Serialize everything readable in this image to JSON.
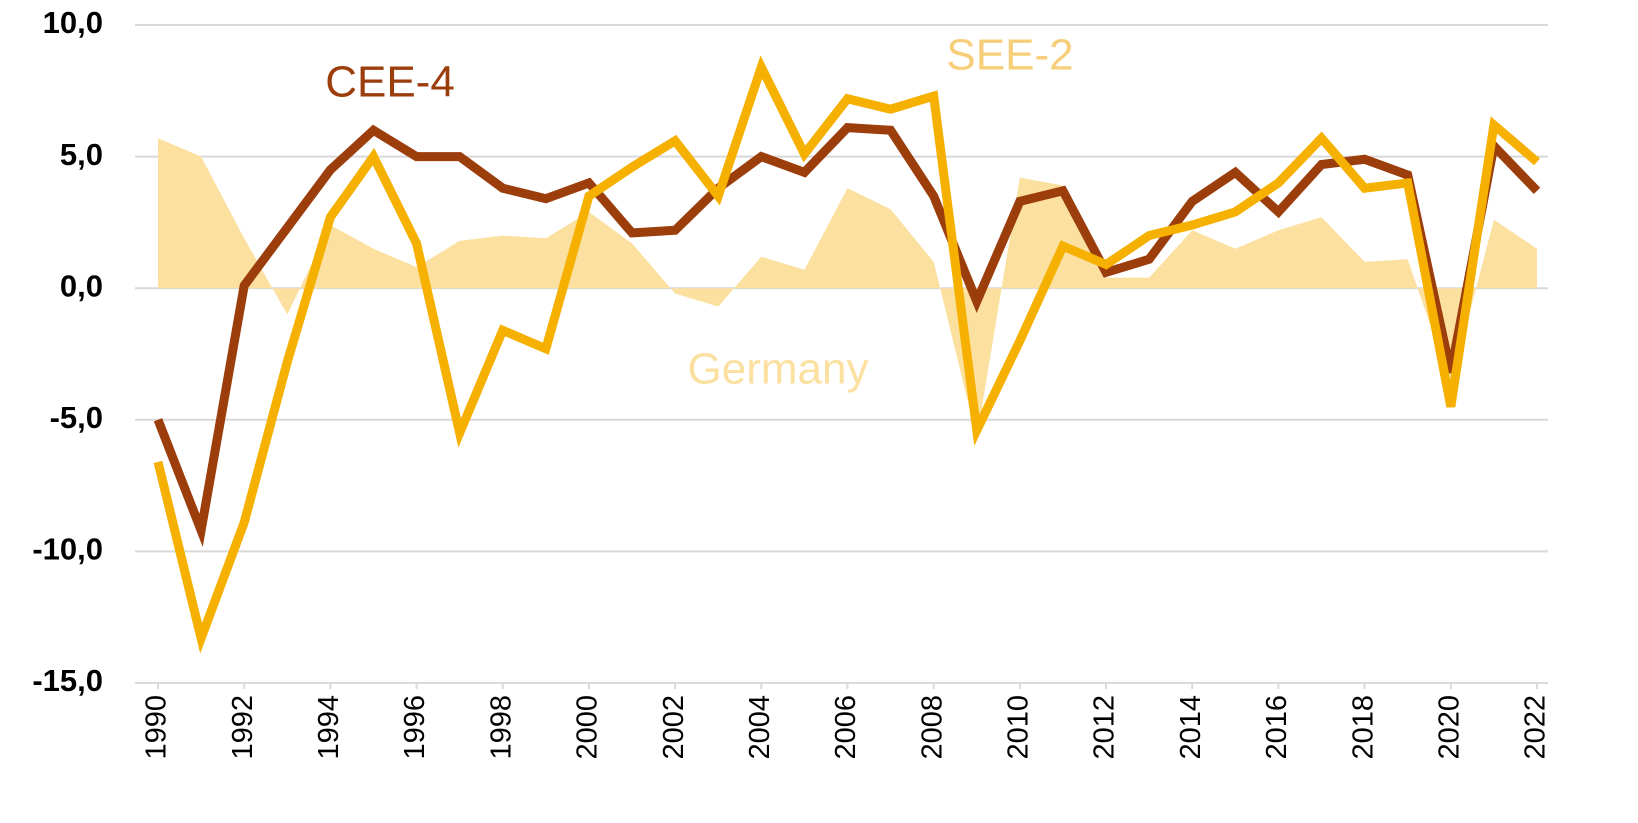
{
  "chart_data": {
    "type": "line",
    "x": [
      1990,
      1991,
      1992,
      1993,
      1994,
      1995,
      1996,
      1997,
      1998,
      1999,
      2000,
      2001,
      2002,
      2003,
      2004,
      2005,
      2006,
      2007,
      2008,
      2009,
      2010,
      2011,
      2012,
      2013,
      2014,
      2015,
      2016,
      2017,
      2018,
      2019,
      2020,
      2021,
      2022
    ],
    "xlim": [
      1990,
      2022
    ],
    "xticks": [
      1990,
      1992,
      1994,
      1996,
      1998,
      2000,
      2002,
      2004,
      2006,
      2008,
      2010,
      2012,
      2014,
      2016,
      2018,
      2020,
      2022
    ],
    "ylim": [
      -15,
      10
    ],
    "yticks": [
      {
        "value": -15,
        "label": "-15,0"
      },
      {
        "value": -10,
        "label": "-10,0"
      },
      {
        "value": -5,
        "label": "-5,0"
      },
      {
        "value": 0,
        "label": "0,0"
      },
      {
        "value": 5,
        "label": "5,0"
      },
      {
        "value": 10,
        "label": "10,0"
      }
    ],
    "grid": true,
    "series": [
      {
        "name": "Germany",
        "style": "area",
        "color": "#fbe0a0",
        "values": [
          5.7,
          5.0,
          1.9,
          -1.0,
          2.4,
          1.5,
          0.8,
          1.8,
          2.0,
          1.9,
          2.9,
          1.7,
          -0.2,
          -0.7,
          1.2,
          0.7,
          3.8,
          3.0,
          1.0,
          -5.7,
          4.2,
          3.9,
          0.4,
          0.4,
          2.2,
          1.5,
          2.2,
          2.7,
          1.0,
          1.1,
          -3.7,
          2.6,
          1.5
        ]
      },
      {
        "name": "CEE-4",
        "style": "line",
        "color": "#9c3d0c",
        "values": [
          -5.0,
          -9.2,
          0.1,
          2.3,
          4.5,
          6.0,
          5.0,
          5.0,
          3.8,
          3.4,
          4.0,
          2.1,
          2.2,
          3.8,
          5.0,
          4.4,
          6.1,
          6.0,
          3.5,
          -0.5,
          3.3,
          3.7,
          0.6,
          1.1,
          3.3,
          4.4,
          2.9,
          4.7,
          4.9,
          4.3,
          -3.2,
          5.4,
          3.7
        ]
      },
      {
        "name": "SEE-2",
        "style": "line",
        "color": "#f5b000",
        "values": [
          -6.6,
          -13.3,
          -8.9,
          -2.8,
          2.7,
          5.0,
          1.7,
          -5.5,
          -1.6,
          -2.3,
          3.5,
          4.6,
          5.6,
          3.5,
          8.4,
          5.1,
          7.2,
          6.8,
          7.3,
          -5.4,
          -2.0,
          1.6,
          0.9,
          2.0,
          2.4,
          2.9,
          4.0,
          5.7,
          3.8,
          4.0,
          -4.5,
          6.2,
          4.8
        ]
      }
    ]
  }
}
